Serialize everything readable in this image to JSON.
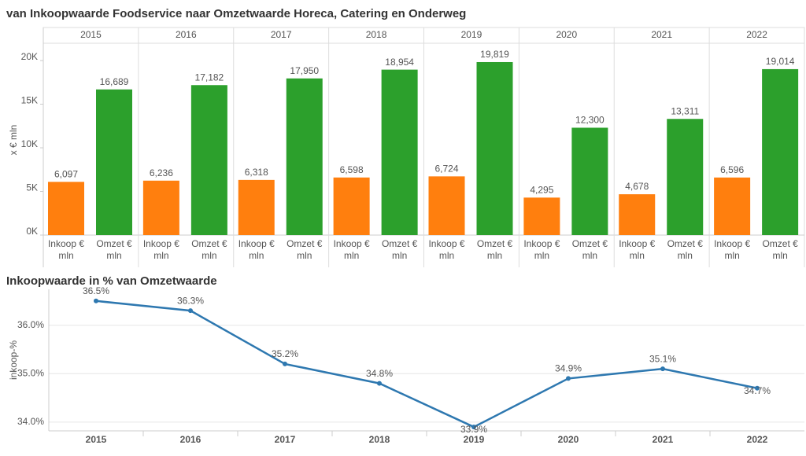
{
  "chart_data": [
    {
      "type": "bar",
      "title": "van Inkoopwaarde Foodservice naar Omzetwaarde Horeca, Catering en Onderweg",
      "y_label": "x € mln",
      "categories": [
        "2015",
        "2016",
        "2017",
        "2018",
        "2019",
        "2020",
        "2021",
        "2022"
      ],
      "series": [
        {
          "name": "Inkoop € mln",
          "color": "#ff7f0e",
          "values": [
            6097,
            6236,
            6318,
            6598,
            6724,
            4295,
            4678,
            6596
          ],
          "value_labels": [
            "6,097",
            "6,236",
            "6,318",
            "6,598",
            "6,724",
            "4,295",
            "4,678",
            "6,596"
          ]
        },
        {
          "name": "Omzet € mln",
          "color": "#2ca02c",
          "values": [
            16689,
            17182,
            17950,
            18954,
            19819,
            12300,
            13311,
            19014
          ],
          "value_labels": [
            "16,689",
            "17,182",
            "17,950",
            "18,954",
            "19,819",
            "12,300",
            "13,311",
            "19,014"
          ]
        }
      ],
      "ylim": [
        0,
        21800
      ],
      "yticks": [
        {
          "value": 0,
          "label": "0K"
        },
        {
          "value": 5000,
          "label": "5K"
        },
        {
          "value": 10000,
          "label": "10K"
        },
        {
          "value": 15000,
          "label": "15K"
        },
        {
          "value": 20000,
          "label": "20K"
        }
      ],
      "grid": false
    },
    {
      "type": "line",
      "title": "Inkoopwaarde in % van Omzetwaarde",
      "y_label": "inkoop-%",
      "categories": [
        "2015",
        "2016",
        "2017",
        "2018",
        "2019",
        "2020",
        "2021",
        "2022"
      ],
      "values": [
        36.5,
        36.3,
        35.2,
        34.8,
        33.9,
        34.9,
        35.1,
        34.7
      ],
      "value_labels": [
        "36.5%",
        "36.3%",
        "35.2%",
        "34.8%",
        "33.9%",
        "34.9%",
        "35.1%",
        "34.7%"
      ],
      "color": "#2e78b0",
      "ylim": [
        33.82,
        36.74
      ],
      "yticks": [
        {
          "value": 34,
          "label": "34.0%"
        },
        {
          "value": 35,
          "label": "35.0%"
        },
        {
          "value": 36,
          "label": "36.0%"
        }
      ],
      "grid": true
    }
  ]
}
